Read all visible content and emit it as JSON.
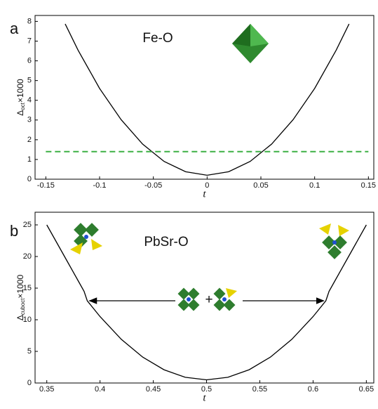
{
  "chart_data": [
    {
      "type": "line",
      "panel_label": "a",
      "title": "Fe-O",
      "xlabel": "t",
      "ylabel": [
        "Δ",
        "oct",
        "×1000"
      ],
      "xlim": [
        -0.16,
        0.155
      ],
      "ylim": [
        0,
        8.3
      ],
      "xticks": [
        -0.15,
        -0.1,
        -0.05,
        0,
        0.05,
        0.1,
        0.15
      ],
      "yticks": [
        0,
        1,
        2,
        3,
        4,
        5,
        6,
        7,
        8
      ],
      "series": [
        {
          "color": "#000000",
          "dash": false,
          "x": [
            -0.132,
            -0.12,
            -0.1,
            -0.08,
            -0.06,
            -0.04,
            -0.02,
            0,
            0.02,
            0.04,
            0.06,
            0.08,
            0.1,
            0.12,
            0.132
          ],
          "values": [
            7.87,
            6.54,
            4.6,
            3.02,
            1.78,
            0.9,
            0.38,
            0.2,
            0.38,
            0.9,
            1.78,
            3.02,
            4.6,
            6.54,
            7.87
          ]
        },
        {
          "color": "#3cb043",
          "dash": true,
          "x": [
            -0.15,
            0.15
          ],
          "values": [
            1.4,
            1.4
          ]
        }
      ]
    },
    {
      "type": "line",
      "panel_label": "b",
      "title": "PbSr-O",
      "xlabel": "t",
      "ylabel": [
        "Δ",
        "cuboct",
        "×1000"
      ],
      "xlim": [
        0.339,
        0.657
      ],
      "ylim": [
        0,
        27
      ],
      "xticks": [
        0.35,
        0.4,
        0.45,
        0.5,
        0.55,
        0.6,
        0.65
      ],
      "yticks": [
        0,
        5,
        10,
        15,
        20,
        25
      ],
      "operator": "+",
      "arrow": {
        "x": [
          0.39,
          0.61
        ],
        "y": 13
      },
      "series": [
        {
          "color": "#000000",
          "dash": false,
          "x": [
            0.35,
            0.36,
            0.37,
            0.38,
            0.385,
            0.388,
            0.4,
            0.42,
            0.44,
            0.46,
            0.48,
            0.5,
            0.52,
            0.54,
            0.56,
            0.58,
            0.6,
            0.612,
            0.615,
            0.62,
            0.63,
            0.64,
            0.65
          ],
          "values": [
            25,
            22,
            19,
            16,
            14.5,
            13,
            10.5,
            6.9,
            4.1,
            2.1,
            0.9,
            0.5,
            0.9,
            2.1,
            4.1,
            6.9,
            10.5,
            13,
            14.5,
            16,
            19,
            22,
            25
          ]
        }
      ]
    }
  ]
}
